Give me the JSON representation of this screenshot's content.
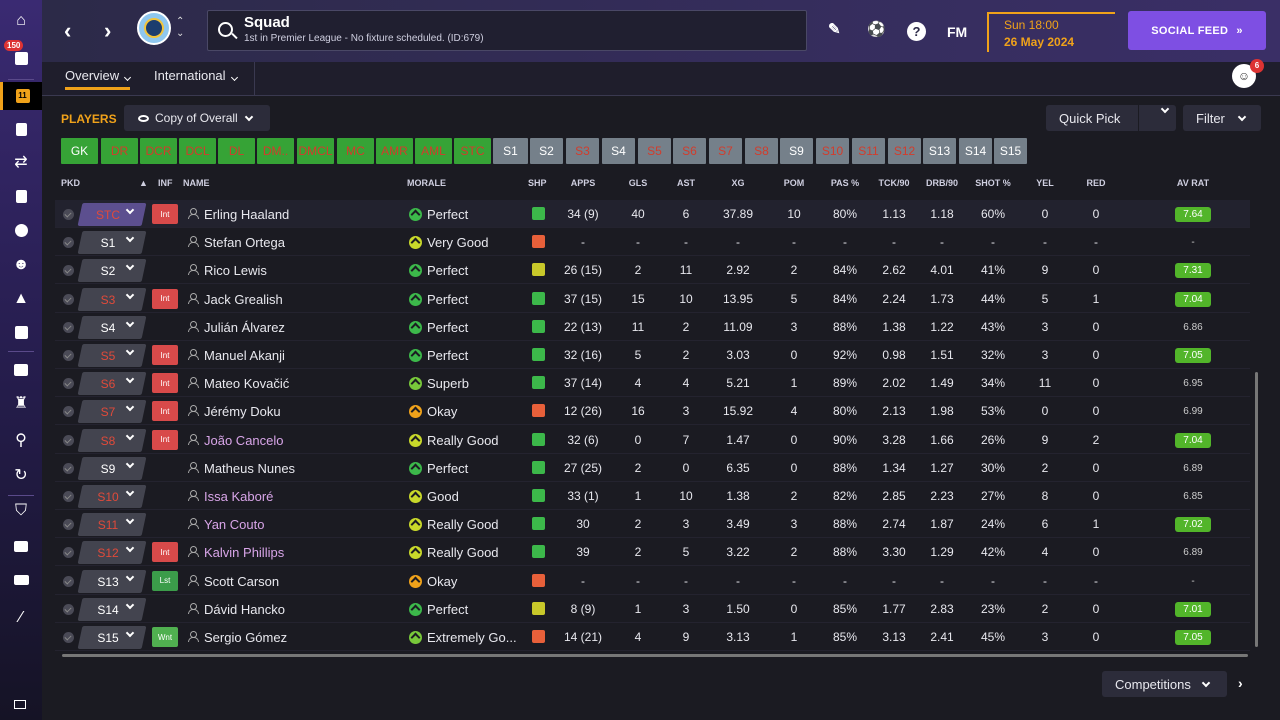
{
  "header": {
    "title": "Squad",
    "subtitle": "1st in Premier League - No fixture scheduled. (ID:679)",
    "date_line1": "Sun 18:00",
    "date_line2": "26 May 2024",
    "social_label": "SOCIAL FEED",
    "fm_label": "FM",
    "help_label": "?"
  },
  "sidebar": {
    "inbox_badge": "150",
    "squad_badge": "11"
  },
  "subnav": {
    "overview": "Overview",
    "international": "International",
    "notif_count": "6"
  },
  "toolbar": {
    "players_label": "PLAYERS",
    "view_label": "Copy of Overall",
    "quick_pick": "Quick Pick",
    "filter": "Filter",
    "competitions": "Competitions"
  },
  "positions": [
    "GK",
    "DR",
    "DCR",
    "DCL",
    "DL",
    "DM..",
    "DMCL",
    "MC",
    "AMR",
    "AML",
    "STC",
    "S1",
    "S2",
    "S3",
    "S4",
    "S5",
    "S6",
    "S7",
    "S8",
    "S9",
    "S10",
    "S11",
    "S12",
    "S13",
    "S14",
    "S15"
  ],
  "columns": {
    "pkd": "PKD",
    "inf": "INF",
    "name": "NAME",
    "morale": "MORALE",
    "shp": "SHP",
    "apps": "APPS",
    "gls": "GLS",
    "ast": "AST",
    "xg": "XG",
    "pom": "POM",
    "pas": "PAS %",
    "tck": "TCK/90",
    "drb": "DRB/90",
    "shot": "SHOT %",
    "yel": "YEL",
    "red": "RED",
    "avrat": "AV RAT"
  },
  "players": [
    {
      "pkd": "STC",
      "inf": "Int",
      "name": "Erling Haaland",
      "morale": "Perfect",
      "apps": "34 (9)",
      "gls": "40",
      "ast": "6",
      "xg": "37.89",
      "pom": "10",
      "pas": "80%",
      "tck": "1.13",
      "drb": "1.18",
      "shot": "60%",
      "yel": "0",
      "red": "0",
      "avrat": "7.64"
    },
    {
      "pkd": "S1",
      "inf": "",
      "name": "Stefan Ortega",
      "morale": "Very Good",
      "apps": "-",
      "gls": "-",
      "ast": "-",
      "xg": "-",
      "pom": "-",
      "pas": "-",
      "tck": "-",
      "drb": "-",
      "shot": "-",
      "yel": "-",
      "red": "-",
      "avrat": "-"
    },
    {
      "pkd": "S2",
      "inf": "",
      "name": "Rico Lewis",
      "morale": "Perfect",
      "apps": "26 (15)",
      "gls": "2",
      "ast": "11",
      "xg": "2.92",
      "pom": "2",
      "pas": "84%",
      "tck": "2.62",
      "drb": "4.01",
      "shot": "41%",
      "yel": "9",
      "red": "0",
      "avrat": "7.31"
    },
    {
      "pkd": "S3",
      "inf": "Int",
      "name": "Jack Grealish",
      "morale": "Perfect",
      "apps": "37 (15)",
      "gls": "15",
      "ast": "10",
      "xg": "13.95",
      "pom": "5",
      "pas": "84%",
      "tck": "2.24",
      "drb": "1.73",
      "shot": "44%",
      "yel": "5",
      "red": "1",
      "avrat": "7.04"
    },
    {
      "pkd": "S4",
      "inf": "",
      "name": "Julián Álvarez",
      "morale": "Perfect",
      "apps": "22 (13)",
      "gls": "11",
      "ast": "2",
      "xg": "11.09",
      "pom": "3",
      "pas": "88%",
      "tck": "1.38",
      "drb": "1.22",
      "shot": "43%",
      "yel": "3",
      "red": "0",
      "avrat": "6.86"
    },
    {
      "pkd": "S5",
      "inf": "Int",
      "name": "Manuel Akanji",
      "morale": "Perfect",
      "apps": "32 (16)",
      "gls": "5",
      "ast": "2",
      "xg": "3.03",
      "pom": "0",
      "pas": "92%",
      "tck": "0.98",
      "drb": "1.51",
      "shot": "32%",
      "yel": "3",
      "red": "0",
      "avrat": "7.05"
    },
    {
      "pkd": "S6",
      "inf": "Int",
      "name": "Mateo Kovačić",
      "morale": "Superb",
      "apps": "37 (14)",
      "gls": "4",
      "ast": "4",
      "xg": "5.21",
      "pom": "1",
      "pas": "89%",
      "tck": "2.02",
      "drb": "1.49",
      "shot": "34%",
      "yel": "11",
      "red": "0",
      "avrat": "6.95"
    },
    {
      "pkd": "S7",
      "inf": "Int",
      "name": "Jérémy Doku",
      "morale": "Okay",
      "apps": "12 (26)",
      "gls": "16",
      "ast": "3",
      "xg": "15.92",
      "pom": "4",
      "pas": "80%",
      "tck": "2.13",
      "drb": "1.98",
      "shot": "53%",
      "yel": "0",
      "red": "0",
      "avrat": "6.99"
    },
    {
      "pkd": "S8",
      "inf": "Int",
      "name": "João Cancelo",
      "morale": "Really Good",
      "apps": "32 (6)",
      "gls": "0",
      "ast": "7",
      "xg": "1.47",
      "pom": "0",
      "pas": "90%",
      "tck": "3.28",
      "drb": "1.66",
      "shot": "26%",
      "yel": "9",
      "red": "2",
      "avrat": "7.04"
    },
    {
      "pkd": "S9",
      "inf": "",
      "name": "Matheus Nunes",
      "morale": "Perfect",
      "apps": "27 (25)",
      "gls": "2",
      "ast": "0",
      "xg": "6.35",
      "pom": "0",
      "pas": "88%",
      "tck": "1.34",
      "drb": "1.27",
      "shot": "30%",
      "yel": "2",
      "red": "0",
      "avrat": "6.89"
    },
    {
      "pkd": "S10",
      "inf": "",
      "name": "Issa Kaboré",
      "morale": "Good",
      "apps": "33 (1)",
      "gls": "1",
      "ast": "10",
      "xg": "1.38",
      "pom": "2",
      "pas": "82%",
      "tck": "2.85",
      "drb": "2.23",
      "shot": "27%",
      "yel": "8",
      "red": "0",
      "avrat": "6.85"
    },
    {
      "pkd": "S11",
      "inf": "",
      "name": "Yan Couto",
      "morale": "Really Good",
      "apps": "30",
      "gls": "2",
      "ast": "3",
      "xg": "3.49",
      "pom": "3",
      "pas": "88%",
      "tck": "2.74",
      "drb": "1.87",
      "shot": "24%",
      "yel": "6",
      "red": "1",
      "avrat": "7.02"
    },
    {
      "pkd": "S12",
      "inf": "Int",
      "name": "Kalvin Phillips",
      "morale": "Really Good",
      "apps": "39",
      "gls": "2",
      "ast": "5",
      "xg": "3.22",
      "pom": "2",
      "pas": "88%",
      "tck": "3.30",
      "drb": "1.29",
      "shot": "42%",
      "yel": "4",
      "red": "0",
      "avrat": "6.89"
    },
    {
      "pkd": "S13",
      "inf": "Lst",
      "name": "Scott Carson",
      "morale": "Okay",
      "apps": "-",
      "gls": "-",
      "ast": "-",
      "xg": "-",
      "pom": "-",
      "pas": "-",
      "tck": "-",
      "drb": "-",
      "shot": "-",
      "yel": "-",
      "red": "-",
      "avrat": "-"
    },
    {
      "pkd": "S14",
      "inf": "",
      "name": "Dávid Hancko",
      "morale": "Perfect",
      "apps": "8 (9)",
      "gls": "1",
      "ast": "3",
      "xg": "1.50",
      "pom": "0",
      "pas": "85%",
      "tck": "1.77",
      "drb": "2.83",
      "shot": "23%",
      "yel": "2",
      "red": "0",
      "avrat": "7.01"
    },
    {
      "pkd": "S15",
      "inf": "Wnt",
      "name": "Sergio Gómez",
      "morale": "Extremely Go...",
      "apps": "14 (21)",
      "gls": "4",
      "ast": "9",
      "xg": "3.13",
      "pom": "1",
      "pas": "85%",
      "tck": "3.13",
      "drb": "2.41",
      "shot": "45%",
      "yel": "3",
      "red": "0",
      "avrat": "7.05"
    }
  ],
  "colors": {
    "accent": "#f0a21a",
    "social": "#7e4fe3",
    "pitch_green": "#36a336",
    "sub_gray": "#75808a",
    "rating_green": "#52b52a",
    "int_red": "#d84a4a"
  }
}
